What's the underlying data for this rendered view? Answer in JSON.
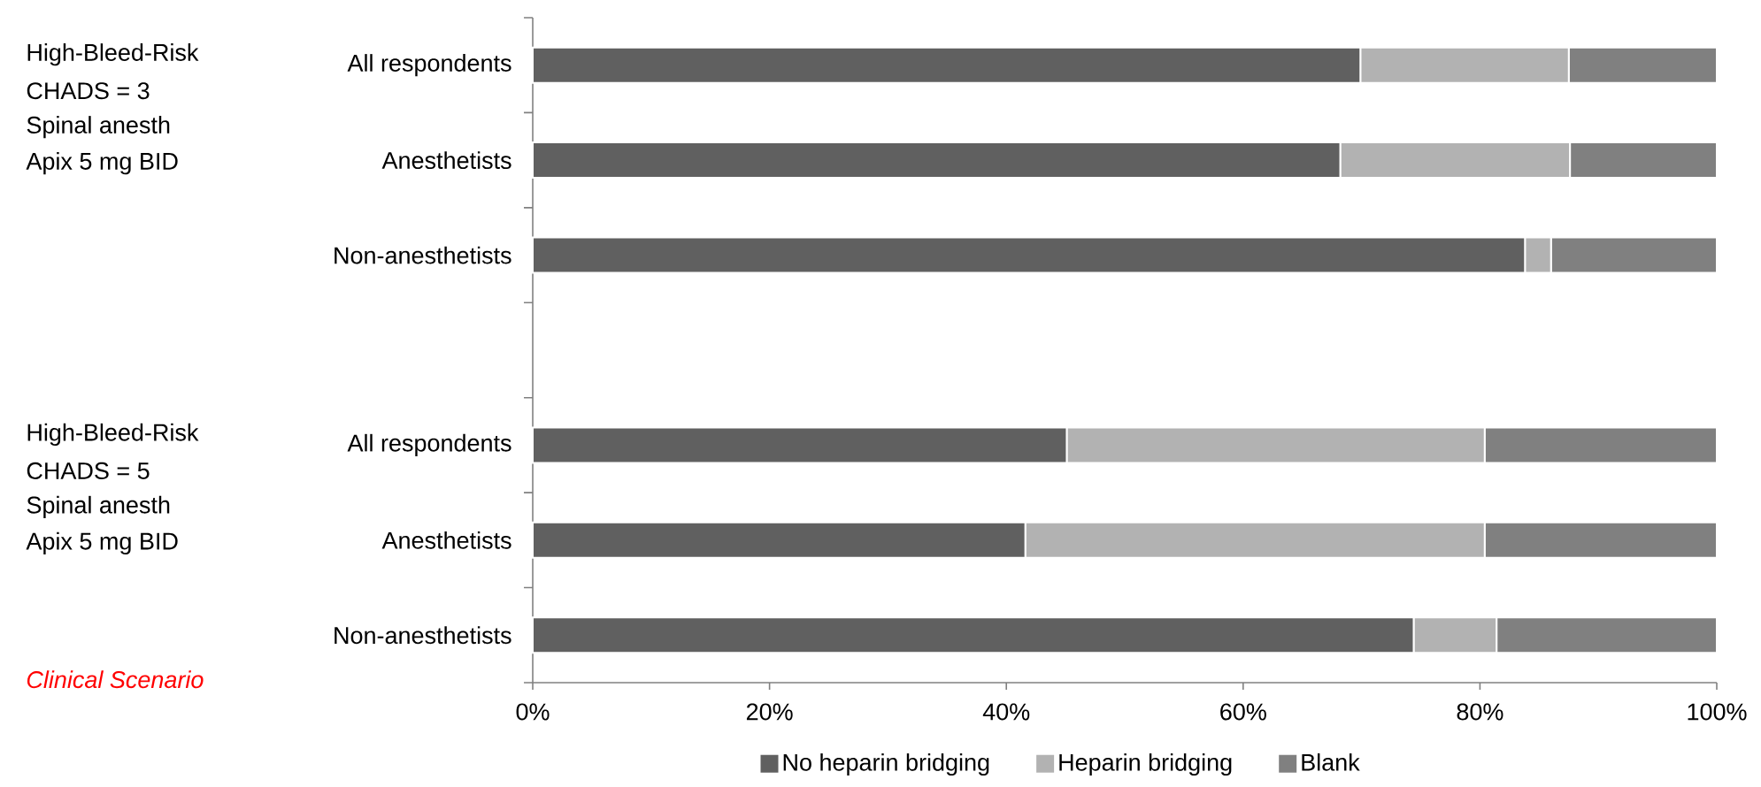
{
  "chart_data": {
    "type": "bar",
    "orientation": "horizontal",
    "stacked": true,
    "categories": [
      "All respondents",
      "Anesthetists",
      "Non-anesthetists",
      null,
      "All respondents",
      "Anesthetists",
      "Non-anesthetists"
    ],
    "series": [
      {
        "name": "No heparin bridging",
        "color": "#606060",
        "values": [
          69.9,
          68.2,
          83.8,
          null,
          45.1,
          41.6,
          74.4
        ]
      },
      {
        "name": "Heparin bridging",
        "color": "#b2b2b2",
        "values": [
          17.6,
          19.4,
          2.2,
          null,
          35.3,
          38.8,
          7.0
        ]
      },
      {
        "name": "Blank",
        "color": "#808080",
        "values": [
          12.5,
          12.4,
          14.0,
          null,
          19.6,
          19.6,
          18.6
        ]
      }
    ],
    "xlim": [
      0,
      100
    ],
    "xticks": [
      {
        "value": 0,
        "label": "0%"
      },
      {
        "value": 20,
        "label": "20%"
      },
      {
        "value": 40,
        "label": "40%"
      },
      {
        "value": 60,
        "label": "60%"
      },
      {
        "value": 80,
        "label": "80%"
      },
      {
        "value": 100,
        "label": "100%"
      }
    ],
    "legend": "bottom",
    "annotations": [
      "High-Bleed-Risk",
      "CHADS = 3",
      "Spinal anesth",
      "Apix 5 mg BID",
      "High-Bleed-Risk",
      "CHADS = 5",
      "Spinal anesth",
      "Apix 5 mg BID",
      "Clinical Scenario"
    ]
  }
}
